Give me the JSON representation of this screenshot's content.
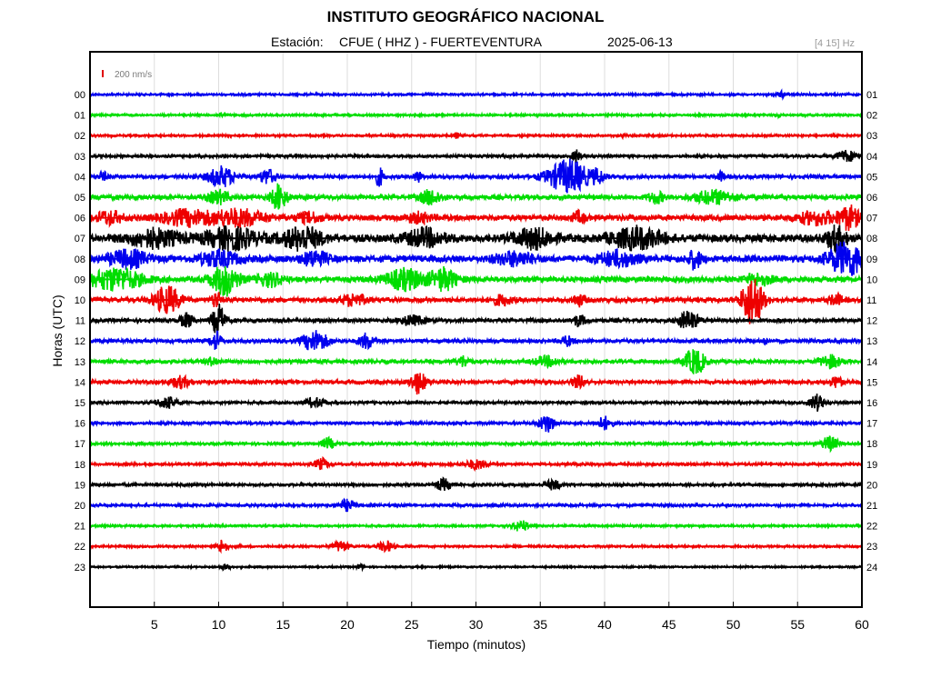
{
  "header": {
    "title": "INSTITUTO GEOGRÁFICO NACIONAL",
    "station_label": "Estación:",
    "station": "CFUE ( HHZ ) - FUERTEVENTURA",
    "date": "2025-06-13",
    "freq_band": "[4 15] Hz"
  },
  "chart_data": {
    "type": "line",
    "title": "INSTITUTO GEOGRÁFICO NACIONAL",
    "xlabel": "Tiempo (minutos)",
    "ylabel": "Horas (UTC)",
    "xlim": [
      0,
      60
    ],
    "x_ticks": [
      5,
      10,
      15,
      20,
      25,
      30,
      35,
      40,
      45,
      50,
      55,
      60
    ],
    "grid": true,
    "scale_bar": {
      "label": "200 nm/s",
      "color": "#e00000"
    },
    "left_labels": [
      "00",
      "01",
      "02",
      "03",
      "04",
      "05",
      "06",
      "07",
      "08",
      "09",
      "10",
      "11",
      "12",
      "13",
      "14",
      "15",
      "16",
      "17",
      "18",
      "19",
      "20",
      "21",
      "22",
      "23"
    ],
    "right_labels": [
      "01",
      "02",
      "03",
      "04",
      "05",
      "06",
      "07",
      "08",
      "09",
      "10",
      "11",
      "12",
      "13",
      "14",
      "15",
      "16",
      "17",
      "18",
      "19",
      "20",
      "21",
      "22",
      "23",
      "24"
    ],
    "trace_colors": [
      "#0000ee",
      "#00dd00",
      "#ee0000",
      "#000000"
    ],
    "series": [
      {
        "hour": "00",
        "noise": 1.2,
        "events": [
          [
            53.8,
            0.4,
            3
          ]
        ]
      },
      {
        "hour": "01",
        "noise": 1.2,
        "events": [
          [
            10.2,
            0.3,
            2
          ],
          [
            53.5,
            0.3,
            2
          ]
        ]
      },
      {
        "hour": "02",
        "noise": 1.2,
        "events": [
          [
            28.5,
            0.2,
            3
          ],
          [
            41.5,
            0.2,
            2
          ]
        ]
      },
      {
        "hour": "03",
        "noise": 1.5,
        "events": [
          [
            37.8,
            0.3,
            7
          ],
          [
            58.8,
            0.8,
            6
          ]
        ]
      },
      {
        "hour": "04",
        "noise": 2.0,
        "events": [
          [
            1.0,
            0.3,
            5
          ],
          [
            10.2,
            1.0,
            11
          ],
          [
            13.8,
            0.6,
            8
          ],
          [
            22.5,
            0.3,
            10
          ],
          [
            25.5,
            0.3,
            6
          ],
          [
            37.2,
            1.6,
            18
          ],
          [
            39.5,
            0.5,
            6
          ],
          [
            49,
            0.3,
            5
          ]
        ]
      },
      {
        "hour": "05",
        "noise": 2.5,
        "events": [
          [
            10,
            0.8,
            7
          ],
          [
            14.7,
            0.6,
            14
          ],
          [
            26.5,
            0.8,
            8
          ],
          [
            44,
            0.6,
            6
          ],
          [
            48.5,
            1.6,
            7
          ]
        ]
      },
      {
        "hour": "06",
        "noise": 3.0,
        "events": [
          [
            1.5,
            1.0,
            7
          ],
          [
            7.5,
            2.0,
            8
          ],
          [
            11.5,
            2.0,
            9
          ],
          [
            17,
            1.0,
            5
          ],
          [
            25.5,
            1.0,
            5
          ],
          [
            38,
            0.5,
            6
          ],
          [
            56.5,
            1.5,
            7
          ],
          [
            59,
            0.8,
            12
          ]
        ]
      },
      {
        "hour": "07",
        "noise": 4.0,
        "events": [
          [
            5,
            2.0,
            9
          ],
          [
            11,
            2.0,
            11
          ],
          [
            16.5,
            1.5,
            12
          ],
          [
            26,
            1.5,
            9
          ],
          [
            34.5,
            1.5,
            10
          ],
          [
            42.5,
            2.0,
            11
          ],
          [
            58,
            0.8,
            12
          ]
        ]
      },
      {
        "hour": "08",
        "noise": 3.5,
        "events": [
          [
            3,
            1.5,
            9
          ],
          [
            10,
            1.5,
            8
          ],
          [
            17.5,
            1.0,
            8
          ],
          [
            33,
            1.5,
            7
          ],
          [
            41,
            1.5,
            8
          ],
          [
            47,
            0.5,
            10
          ],
          [
            58.8,
            1.4,
            18
          ]
        ]
      },
      {
        "hour": "09",
        "noise": 3.0,
        "events": [
          [
            2,
            2.0,
            12
          ],
          [
            10.5,
            1.0,
            17
          ],
          [
            14,
            1.0,
            7
          ],
          [
            24.5,
            1.5,
            11
          ],
          [
            27.5,
            1.0,
            12
          ],
          [
            52,
            1.0,
            6
          ]
        ]
      },
      {
        "hour": "10",
        "noise": 2.5,
        "events": [
          [
            6,
            1.0,
            15
          ],
          [
            9.8,
            0.3,
            10
          ],
          [
            20.5,
            1.0,
            6
          ],
          [
            32,
            0.8,
            5
          ],
          [
            38,
            0.5,
            6
          ],
          [
            51.5,
            0.8,
            28
          ],
          [
            58,
            0.5,
            6
          ]
        ]
      },
      {
        "hour": "11",
        "noise": 2.0,
        "events": [
          [
            7.5,
            0.5,
            8
          ],
          [
            10,
            0.5,
            17
          ],
          [
            25,
            1.0,
            5
          ],
          [
            38,
            0.5,
            6
          ],
          [
            46.5,
            0.8,
            10
          ]
        ]
      },
      {
        "hour": "12",
        "noise": 2.0,
        "events": [
          [
            9.8,
            0.4,
            10
          ],
          [
            17.5,
            1.0,
            11
          ],
          [
            21.5,
            0.6,
            8
          ],
          [
            37,
            0.5,
            5
          ],
          [
            52.5,
            0.2,
            4
          ]
        ]
      },
      {
        "hour": "13",
        "noise": 2.0,
        "events": [
          [
            9.5,
            0.5,
            4
          ],
          [
            29,
            0.5,
            6
          ],
          [
            35.5,
            1.0,
            5
          ],
          [
            47,
            0.8,
            14
          ],
          [
            57.5,
            0.8,
            7
          ]
        ]
      },
      {
        "hour": "14",
        "noise": 2.0,
        "events": [
          [
            7,
            0.8,
            6
          ],
          [
            25.5,
            0.6,
            12
          ],
          [
            38,
            0.5,
            7
          ],
          [
            58,
            0.5,
            6
          ]
        ]
      },
      {
        "hour": "15",
        "noise": 1.5,
        "events": [
          [
            6,
            0.8,
            6
          ],
          [
            17.5,
            0.8,
            5
          ],
          [
            56.5,
            0.5,
            9
          ]
        ]
      },
      {
        "hour": "16",
        "noise": 1.5,
        "events": [
          [
            35.5,
            0.6,
            10
          ],
          [
            40,
            0.6,
            7
          ]
        ]
      },
      {
        "hour": "17",
        "noise": 1.5,
        "events": [
          [
            18.5,
            0.5,
            6
          ],
          [
            57.5,
            0.6,
            8
          ]
        ]
      },
      {
        "hour": "18",
        "noise": 1.5,
        "events": [
          [
            18,
            0.5,
            6
          ],
          [
            30,
            0.8,
            5
          ]
        ]
      },
      {
        "hour": "19",
        "noise": 1.5,
        "events": [
          [
            27.5,
            0.6,
            6
          ],
          [
            36,
            0.6,
            5
          ]
        ]
      },
      {
        "hour": "20",
        "noise": 1.5,
        "events": [
          [
            20,
            0.6,
            6
          ]
        ]
      },
      {
        "hour": "21",
        "noise": 1.2,
        "events": [
          [
            33.5,
            0.6,
            6
          ]
        ]
      },
      {
        "hour": "22",
        "noise": 1.2,
        "events": [
          [
            10.3,
            0.4,
            8
          ],
          [
            19.5,
            0.6,
            6
          ],
          [
            23,
            0.6,
            6
          ]
        ]
      },
      {
        "hour": "23",
        "noise": 1.0,
        "events": [
          [
            10.5,
            0.4,
            3
          ],
          [
            21,
            0.3,
            3
          ]
        ]
      }
    ]
  }
}
